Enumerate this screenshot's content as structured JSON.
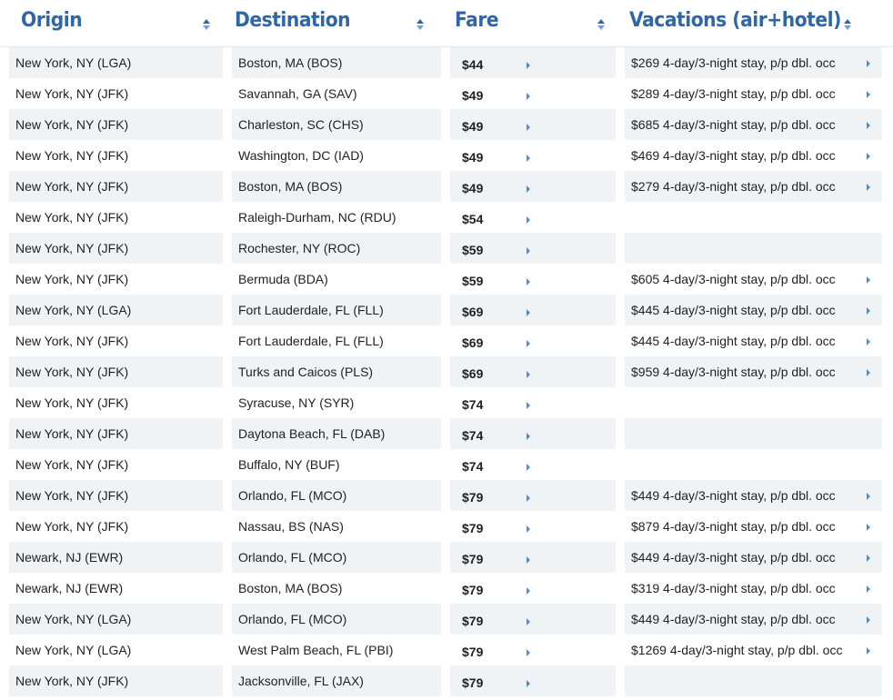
{
  "headers": [
    "Origin",
    "Destination",
    "Fare",
    "Vacations (air+hotel)"
  ],
  "colors": {
    "header": "#2f67a6",
    "row_alt": "#f0f3f6",
    "arrow": "#4a8fd6"
  },
  "rows": [
    [
      "New York, NY (LGA)",
      "Boston, MA (BOS)",
      "$44",
      "$269 4-day/3-night stay, p/p dbl. occ"
    ],
    [
      "New York, NY (JFK)",
      "Savannah, GA (SAV)",
      "$49",
      "$289 4-day/3-night stay, p/p dbl. occ"
    ],
    [
      "New York, NY (JFK)",
      "Charleston, SC (CHS)",
      "$49",
      "$685 4-day/3-night stay, p/p dbl. occ"
    ],
    [
      "New York, NY (JFK)",
      "Washington, DC (IAD)",
      "$49",
      "$469 4-day/3-night stay, p/p dbl. occ"
    ],
    [
      "New York, NY (JFK)",
      "Boston, MA (BOS)",
      "$49",
      "$279 4-day/3-night stay, p/p dbl. occ"
    ],
    [
      "New York, NY (JFK)",
      "Raleigh-Durham, NC (RDU)",
      "$54",
      ""
    ],
    [
      "New York, NY (JFK)",
      "Rochester, NY (ROC)",
      "$59",
      ""
    ],
    [
      "New York, NY (JFK)",
      "Bermuda (BDA)",
      "$59",
      "$605 4-day/3-night stay, p/p dbl. occ"
    ],
    [
      "New York, NY (LGA)",
      "Fort Lauderdale, FL (FLL)",
      "$69",
      "$445 4-day/3-night stay, p/p dbl. occ"
    ],
    [
      "New York, NY (JFK)",
      "Fort Lauderdale, FL (FLL)",
      "$69",
      "$445 4-day/3-night stay, p/p dbl. occ"
    ],
    [
      "New York, NY (JFK)",
      "Turks and Caicos (PLS)",
      "$69",
      "$959 4-day/3-night stay, p/p dbl. occ"
    ],
    [
      "New York, NY (JFK)",
      "Syracuse, NY (SYR)",
      "$74",
      ""
    ],
    [
      "New York, NY (JFK)",
      "Daytona Beach, FL (DAB)",
      "$74",
      ""
    ],
    [
      "New York, NY (JFK)",
      "Buffalo, NY (BUF)",
      "$74",
      ""
    ],
    [
      "New York, NY (JFK)",
      "Orlando, FL (MCO)",
      "$79",
      "$449 4-day/3-night stay, p/p dbl. occ"
    ],
    [
      "New York, NY (JFK)",
      "Nassau, BS (NAS)",
      "$79",
      "$879 4-day/3-night stay, p/p dbl. occ"
    ],
    [
      "Newark, NJ (EWR)",
      "Orlando, FL (MCO)",
      "$79",
      "$449 4-day/3-night stay, p/p dbl. occ"
    ],
    [
      "Newark, NJ (EWR)",
      "Boston, MA (BOS)",
      "$79",
      "$319 4-day/3-night stay, p/p dbl. occ"
    ],
    [
      "New York, NY (LGA)",
      "Orlando, FL (MCO)",
      "$79",
      "$449 4-day/3-night stay, p/p dbl. occ"
    ],
    [
      "New York, NY (LGA)",
      "West Palm Beach, FL (PBI)",
      "$79",
      "$1269 4-day/3-night stay, p/p dbl. occ"
    ],
    [
      "New York, NY (JFK)",
      "Jacksonville, FL (JAX)",
      "$79",
      ""
    ]
  ]
}
